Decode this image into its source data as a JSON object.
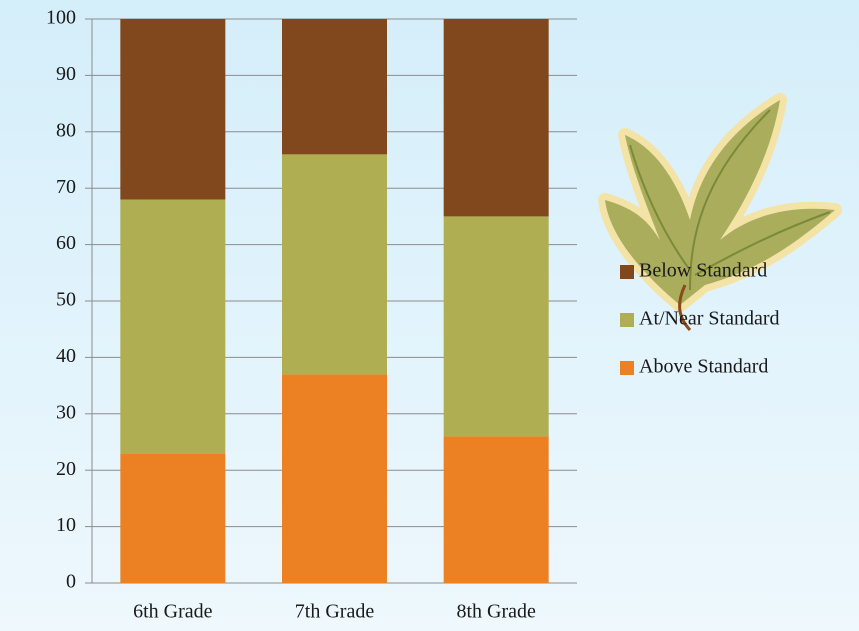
{
  "chart_data": {
    "type": "stacked-bar",
    "categories": [
      "6th Grade",
      "7th Grade",
      "8th Grade"
    ],
    "series": [
      {
        "name": "Above Standard",
        "color": "#ec8124",
        "values": [
          23,
          37,
          26
        ]
      },
      {
        "name": "At/Near Standard",
        "color": "#afae52",
        "values": [
          45,
          39,
          39
        ]
      },
      {
        "name": "Below Standard",
        "color": "#82481d",
        "values": [
          32,
          24,
          35
        ]
      }
    ],
    "ylim": [
      0,
      100
    ],
    "yticks": [
      0,
      10,
      20,
      30,
      40,
      50,
      60,
      70,
      80,
      90,
      100
    ],
    "grid": true,
    "legend": "right"
  }
}
